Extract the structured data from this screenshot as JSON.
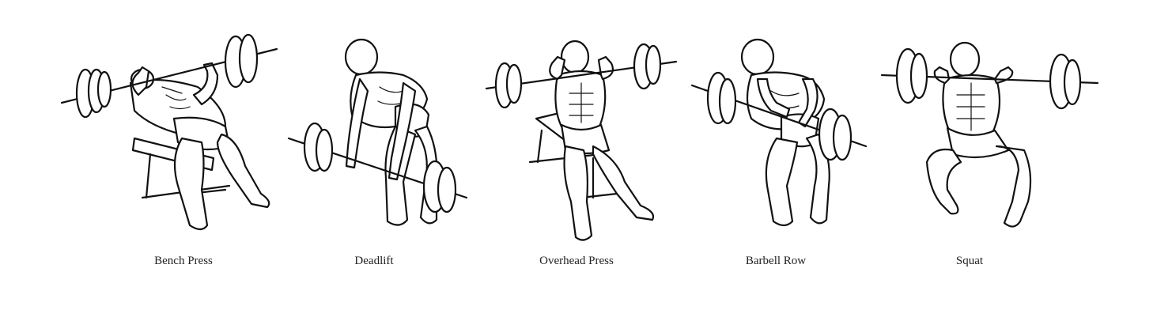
{
  "exercises": [
    {
      "label": "Bench Press",
      "icon": "bench-press-illustration"
    },
    {
      "label": "Deadlift",
      "icon": "deadlift-illustration"
    },
    {
      "label": "Overhead Press",
      "icon": "overhead-press-illustration"
    },
    {
      "label": "Barbell Row",
      "icon": "barbell-row-illustration"
    },
    {
      "label": "Squat",
      "icon": "squat-illustration"
    }
  ],
  "colors": {
    "ink": "#111111",
    "caption": "#222222",
    "background": "#ffffff"
  }
}
